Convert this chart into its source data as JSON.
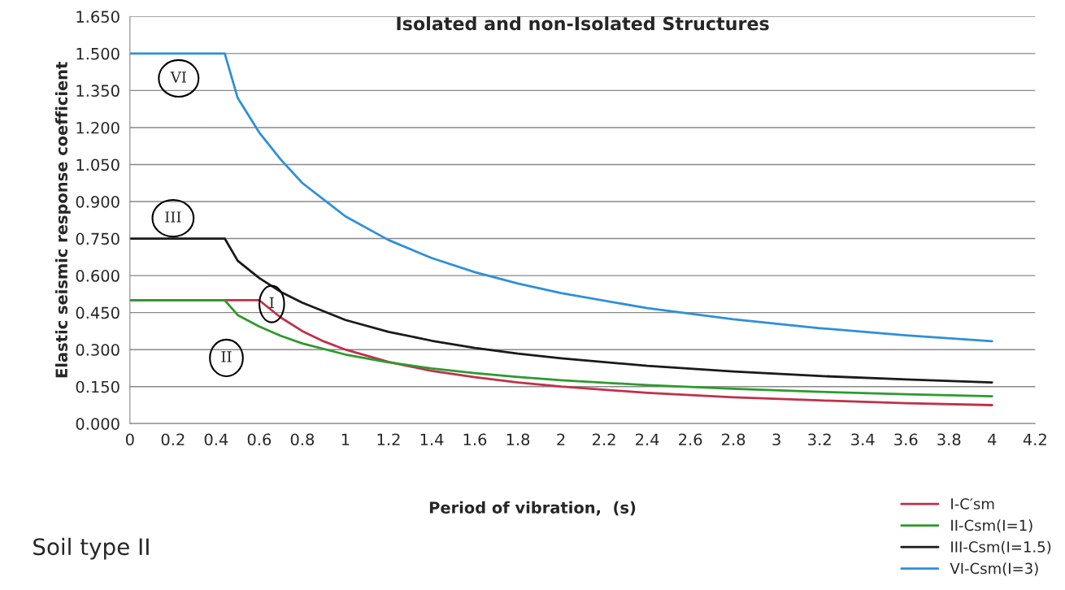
{
  "chart_data": {
    "type": "line",
    "title": "Isolated and non-Isolated Structures",
    "xlabel": "Period of vibration,  (s)",
    "ylabel": "Elastic seismic response coefficient",
    "series": [
      {
        "name": "I-C′sm",
        "color": "#c0304a",
        "x": [
          0,
          0.6,
          0.7,
          0.8,
          0.9,
          1.0,
          1.2,
          1.4,
          1.6,
          1.8,
          2.0,
          2.4,
          2.8,
          3.2,
          3.6,
          4.0
        ],
        "values": [
          0.5,
          0.5,
          0.43,
          0.375,
          0.333,
          0.3,
          0.25,
          0.214,
          0.188,
          0.167,
          0.15,
          0.125,
          0.107,
          0.094,
          0.083,
          0.075
        ]
      },
      {
        "name": "II-Csm(I=1)",
        "color": "#2e9a2e",
        "x": [
          0,
          0.44,
          0.5,
          0.6,
          0.7,
          0.8,
          1.0,
          1.2,
          1.4,
          1.6,
          1.8,
          2.0,
          2.4,
          2.8,
          3.2,
          3.6,
          4.0
        ],
        "values": [
          0.5,
          0.5,
          0.44,
          0.394,
          0.356,
          0.325,
          0.28,
          0.248,
          0.224,
          0.205,
          0.189,
          0.176,
          0.156,
          0.141,
          0.129,
          0.119,
          0.111
        ]
      },
      {
        "name": "III-Csm(I=1.5)",
        "color": "#1a1a1a",
        "x": [
          0,
          0.44,
          0.5,
          0.6,
          0.7,
          0.8,
          1.0,
          1.2,
          1.4,
          1.6,
          1.8,
          2.0,
          2.4,
          2.8,
          3.2,
          3.6,
          4.0
        ],
        "values": [
          0.75,
          0.75,
          0.66,
          0.59,
          0.534,
          0.49,
          0.42,
          0.372,
          0.336,
          0.307,
          0.284,
          0.265,
          0.234,
          0.211,
          0.193,
          0.179,
          0.167
        ]
      },
      {
        "name": "VI-Csm(I=3)",
        "color": "#2f8fd8",
        "x": [
          0,
          0.44,
          0.5,
          0.6,
          0.7,
          0.8,
          1.0,
          1.2,
          1.4,
          1.6,
          1.8,
          2.0,
          2.4,
          2.8,
          3.2,
          3.6,
          4.0
        ],
        "values": [
          1.5,
          1.5,
          1.32,
          1.18,
          1.07,
          0.975,
          0.84,
          0.744,
          0.671,
          0.614,
          0.568,
          0.529,
          0.468,
          0.423,
          0.387,
          0.358,
          0.334
        ]
      }
    ],
    "xlim": [
      0,
      4.2
    ],
    "xticks": [
      0,
      {
        "value": 0.2,
        "label": "0.2"
      },
      {
        "value": 0.4,
        "label": "0.4"
      },
      {
        "value": 0.6,
        "label": "0.6"
      },
      {
        "value": 0.8,
        "label": "0.8"
      },
      1,
      {
        "value": 1.2,
        "label": "1.2"
      },
      {
        "value": 1.4,
        "label": "1.4"
      },
      {
        "value": 1.6,
        "label": "1.6"
      },
      {
        "value": 1.8,
        "label": "1.8"
      },
      2,
      {
        "value": 2.2,
        "label": "2.2"
      },
      {
        "value": 2.4,
        "label": "2.4"
      },
      {
        "value": 2.6,
        "label": "2.6"
      },
      {
        "value": 2.8,
        "label": "2.8"
      },
      3,
      {
        "value": 3.2,
        "label": "3.2"
      },
      {
        "value": 3.4,
        "label": "3.4"
      },
      {
        "value": 3.6,
        "label": "3.6"
      },
      {
        "value": 3.8,
        "label": "3.8"
      },
      4,
      {
        "value": 4.2,
        "label": "4.2"
      }
    ],
    "ylim": [
      0,
      1.65
    ],
    "yticks": [
      {
        "value": 0,
        "label": "0.000"
      },
      {
        "value": 0.15,
        "label": "0.150"
      },
      {
        "value": 0.3,
        "label": "0.300"
      },
      {
        "value": 0.45,
        "label": "0.450"
      },
      {
        "value": 0.6,
        "label": "0.600"
      },
      {
        "value": 0.75,
        "label": "0.750"
      },
      {
        "value": 0.9,
        "label": "0.900"
      },
      {
        "value": 1.05,
        "label": "1.050"
      },
      {
        "value": 1.2,
        "label": "1.200"
      },
      {
        "value": 1.35,
        "label": "1.350"
      },
      {
        "value": 1.5,
        "label": "1.500"
      },
      {
        "value": 1.65,
        "label": "1.650"
      }
    ],
    "grid": "y",
    "legend": "bottom right",
    "marker": "none",
    "line_style": "solid",
    "annotations": [
      {
        "text": "VI",
        "x": 0.2,
        "y": 1.5
      },
      {
        "text": "III",
        "x": 0.2,
        "y": 0.75
      },
      {
        "text": "I",
        "x": 0.7,
        "y": 0.43
      },
      {
        "text": "II",
        "x": 0.5,
        "y": 0.44
      },
      "Soil type II"
    ]
  }
}
